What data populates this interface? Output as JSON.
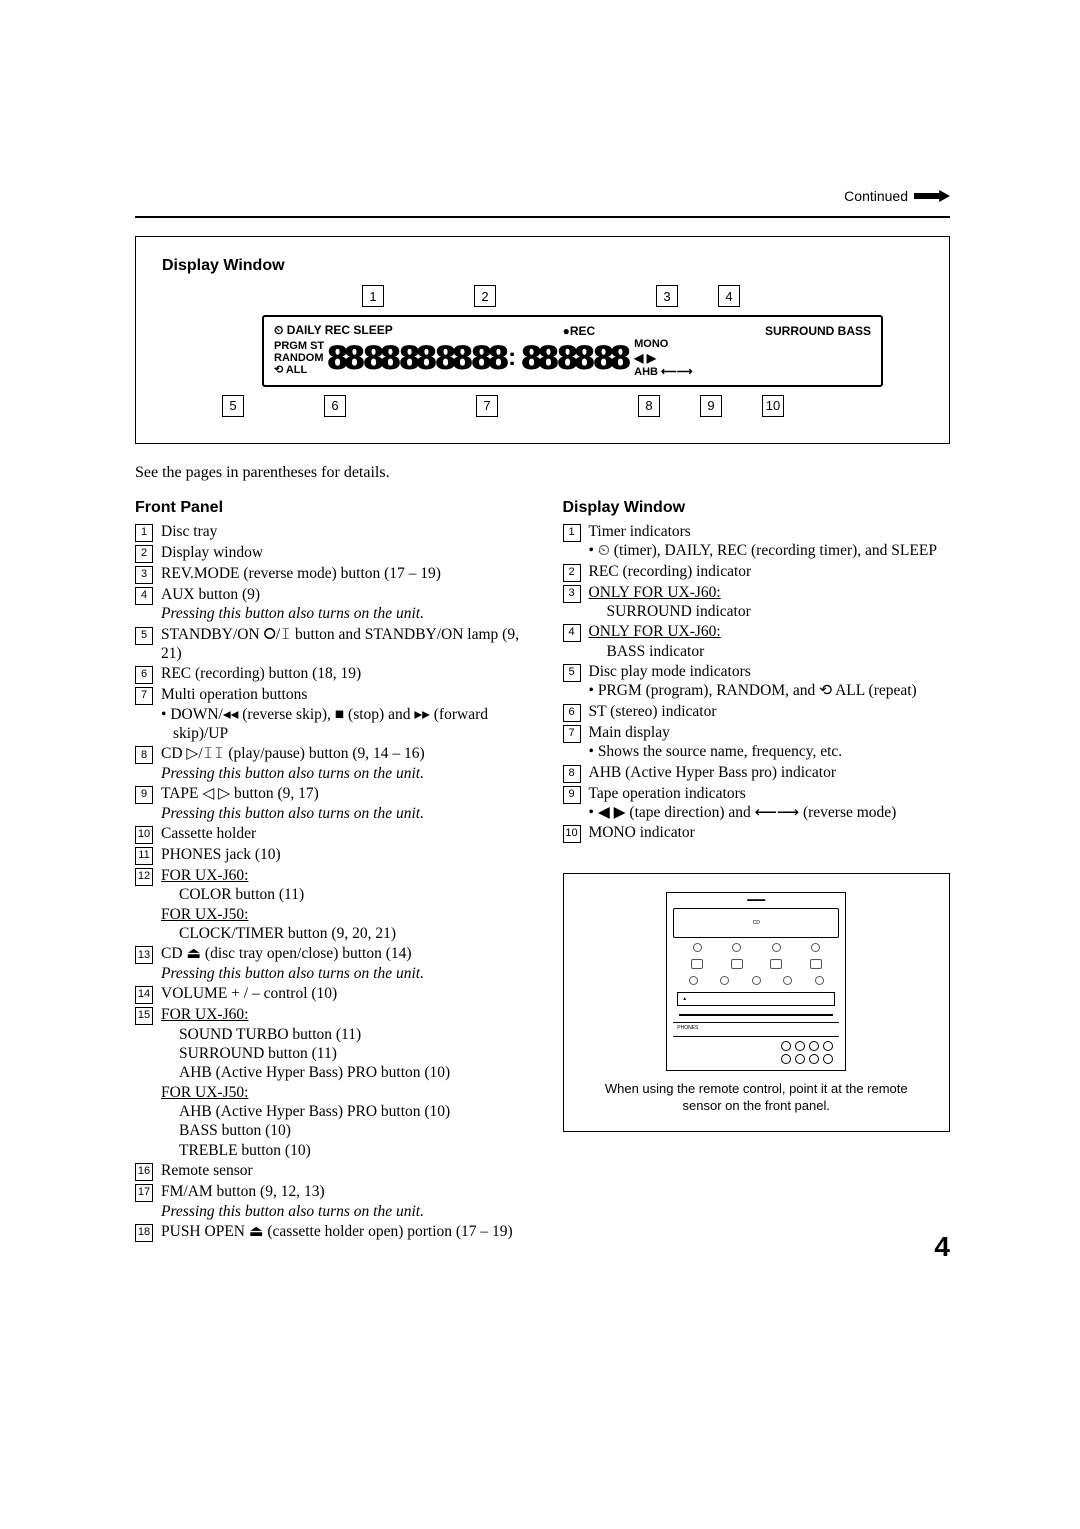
{
  "header": {
    "continued": "Continued"
  },
  "display_diagram": {
    "title": "Display Window",
    "top_callouts": [
      "1",
      "2",
      "3",
      "4"
    ],
    "bottom_callouts": [
      "5",
      "6",
      "7",
      "8",
      "9",
      "10"
    ],
    "lcd": {
      "top_left": "DAILY REC SLEEP",
      "top_mid": "REC",
      "top_right": "SURROUND  BASS",
      "left_col": [
        "PRGM",
        "RANDOM",
        "⟲ ALL"
      ],
      "st": "ST",
      "right_col": [
        "MONO",
        "◀ ▶",
        "AHB  ⟵⟶"
      ],
      "digit_glyph": "88"
    }
  },
  "intro": "See the pages in parentheses for details.",
  "front_panel": {
    "title": "Front Panel",
    "items": [
      {
        "n": "1",
        "text": "Disc tray"
      },
      {
        "n": "2",
        "text": "Display window"
      },
      {
        "n": "3",
        "text": "REV.MODE (reverse mode) button (17 – 19)"
      },
      {
        "n": "4",
        "text": "AUX button (9)",
        "note": "Pressing this button also turns on the unit."
      },
      {
        "n": "5",
        "text": "STANDBY/ON ⭘/𝙸 button and STANDBY/ON lamp (9, 21)"
      },
      {
        "n": "6",
        "text": "REC (recording) button (18, 19)"
      },
      {
        "n": "7",
        "text": "Multi operation buttons",
        "subs": [
          "DOWN/◂◂ (reverse skip), ■ (stop) and ▸▸ (forward skip)/UP"
        ]
      },
      {
        "n": "8",
        "text": "CD ▷/𝙸𝙸 (play/pause) button (9, 14 – 16)",
        "note": "Pressing this button also turns on the unit."
      },
      {
        "n": "9",
        "text": "TAPE ◁ ▷ button (9, 17)",
        "note": "Pressing this button also turns on the unit."
      },
      {
        "n": "10",
        "text": "Cassette holder"
      },
      {
        "n": "11",
        "text": "PHONES jack (10)"
      },
      {
        "n": "12",
        "under1": "FOR UX-J60:",
        "line1": "COLOR button (11)",
        "under2": "FOR UX-J50:",
        "line2": "CLOCK/TIMER button (9, 20, 21)"
      },
      {
        "n": "13",
        "text": "CD ⏏ (disc tray open/close) button (14)",
        "note": "Pressing this button also turns on the unit."
      },
      {
        "n": "14",
        "text": "VOLUME + / – control (10)"
      },
      {
        "n": "15",
        "under1": "FOR UX-J60:",
        "lines1": [
          "SOUND TURBO button (11)",
          "SURROUND button (11)",
          "AHB (Active Hyper Bass) PRO button (10)"
        ],
        "under2": "FOR UX-J50:",
        "lines2": [
          "AHB (Active Hyper Bass) PRO button (10)",
          "BASS button (10)",
          "TREBLE button (10)"
        ]
      },
      {
        "n": "16",
        "text": "Remote sensor"
      },
      {
        "n": "17",
        "text": "FM/AM button (9, 12, 13)",
        "note": "Pressing this button also turns on the unit."
      },
      {
        "n": "18",
        "text": "PUSH OPEN ⏏ (cassette holder open) portion (17 – 19)"
      }
    ]
  },
  "display_window": {
    "title": "Display Window",
    "items": [
      {
        "n": "1",
        "text": "Timer indicators",
        "bullet": "⏲ (timer), DAILY, REC (recording timer), and SLEEP"
      },
      {
        "n": "2",
        "text": "REC (recording) indicator"
      },
      {
        "n": "3",
        "under": "ONLY FOR UX-J60:",
        "line": "SURROUND indicator"
      },
      {
        "n": "4",
        "under": "ONLY FOR UX-J60:",
        "line": "BASS indicator"
      },
      {
        "n": "5",
        "text": "Disc play mode indicators",
        "bullet": "PRGM (program), RANDOM, and ⟲ ALL (repeat)"
      },
      {
        "n": "6",
        "text": "ST (stereo) indicator"
      },
      {
        "n": "7",
        "text": "Main display",
        "bullet": "Shows the source name, frequency, etc."
      },
      {
        "n": "8",
        "text": "AHB (Active Hyper Bass pro) indicator"
      },
      {
        "n": "9",
        "text": "Tape operation indicators",
        "bullet": "◀ ▶ (tape direction) and ⟵⟶ (reverse mode)"
      },
      {
        "n": "10",
        "text": "MONO indicator"
      }
    ]
  },
  "device_caption": "When using the remote control, point it at the remote sensor on the front panel.",
  "page_number": "4",
  "colors": {
    "text": "#000000",
    "bg": "#ffffff"
  }
}
